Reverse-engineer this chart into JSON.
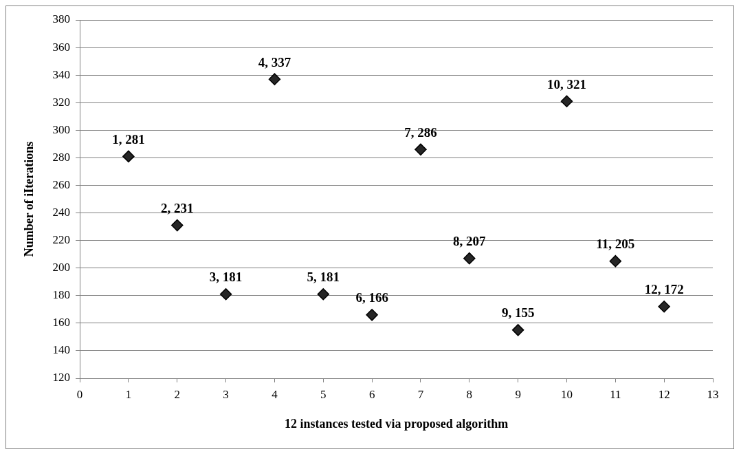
{
  "chart_data": {
    "type": "scatter",
    "xlabel": "12 instances tested via proposed algorithm",
    "ylabel": "Number of iIterations",
    "x": [
      1,
      2,
      3,
      4,
      5,
      6,
      7,
      8,
      9,
      10,
      11,
      12
    ],
    "values": [
      281,
      231,
      181,
      337,
      181,
      166,
      286,
      207,
      155,
      321,
      205,
      172
    ],
    "value_labels": [
      "1, 281",
      "2, 231",
      "3, 181",
      "4, 337",
      "5, 181",
      "6, 166",
      "7, 286",
      "8, 207",
      "9, 155",
      "10, 321",
      "11, 205",
      "12, 172"
    ],
    "color": "#262626",
    "marker": "diamond",
    "xlim": [
      0,
      13
    ],
    "xticks": [
      0,
      1,
      2,
      3,
      4,
      5,
      6,
      7,
      8,
      9,
      10,
      11,
      12,
      13
    ],
    "ylim": [
      120,
      380
    ],
    "yticks": [
      120,
      140,
      160,
      180,
      200,
      220,
      240,
      260,
      280,
      300,
      320,
      340,
      360,
      380
    ],
    "grid": "y",
    "legend": false
  }
}
